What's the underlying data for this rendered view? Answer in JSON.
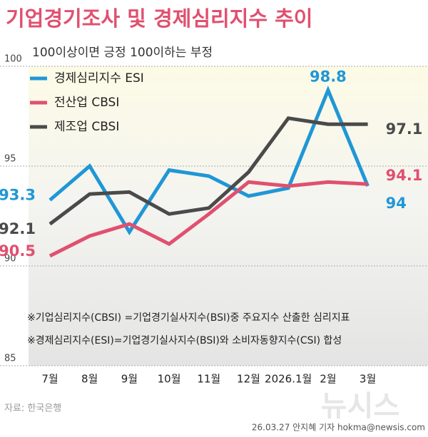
{
  "chart_data": {
    "type": "line",
    "title": "기업경기조사 및 경제심리지수 추이",
    "subtitle": "100이상이면 긍정 100이하는 부정",
    "categories": [
      "7월",
      "8월",
      "9월",
      "10월",
      "11월",
      "12월",
      "2026.1월",
      "2월",
      "3월"
    ],
    "series": [
      {
        "name": "경제심리지수 ESI",
        "color": "#1f97d6",
        "values": [
          93.3,
          95.0,
          91.7,
          94.8,
          94.5,
          93.5,
          93.9,
          98.8,
          94.0
        ]
      },
      {
        "name": "전산업 CBSI",
        "color": "#e0506f",
        "values": [
          90.5,
          91.5,
          92.1,
          91.1,
          92.6,
          94.2,
          94.0,
          94.2,
          94.1
        ]
      },
      {
        "name": "제조업 CBSI",
        "color": "#4a4a4a",
        "values": [
          92.1,
          93.6,
          93.7,
          92.6,
          92.9,
          94.7,
          97.4,
          97.1,
          97.1
        ]
      }
    ],
    "ylim": [
      85,
      100
    ],
    "yticks": [
      85,
      90,
      95,
      100
    ],
    "grid": true,
    "notes": [
      "※기업심리지수(CBSI) =기업경기실사지수(BSI)중 주요지수 산출한 심리지표",
      "※경제심리지수(ESI)=기업경기실사지수(BSI)와 소비자동향지수(CSI) 합성"
    ],
    "source": "자료: 한국은행",
    "credit": "26.03.27 안지혜 기자 hokma@newsis.com",
    "watermark": "뉴시스"
  }
}
